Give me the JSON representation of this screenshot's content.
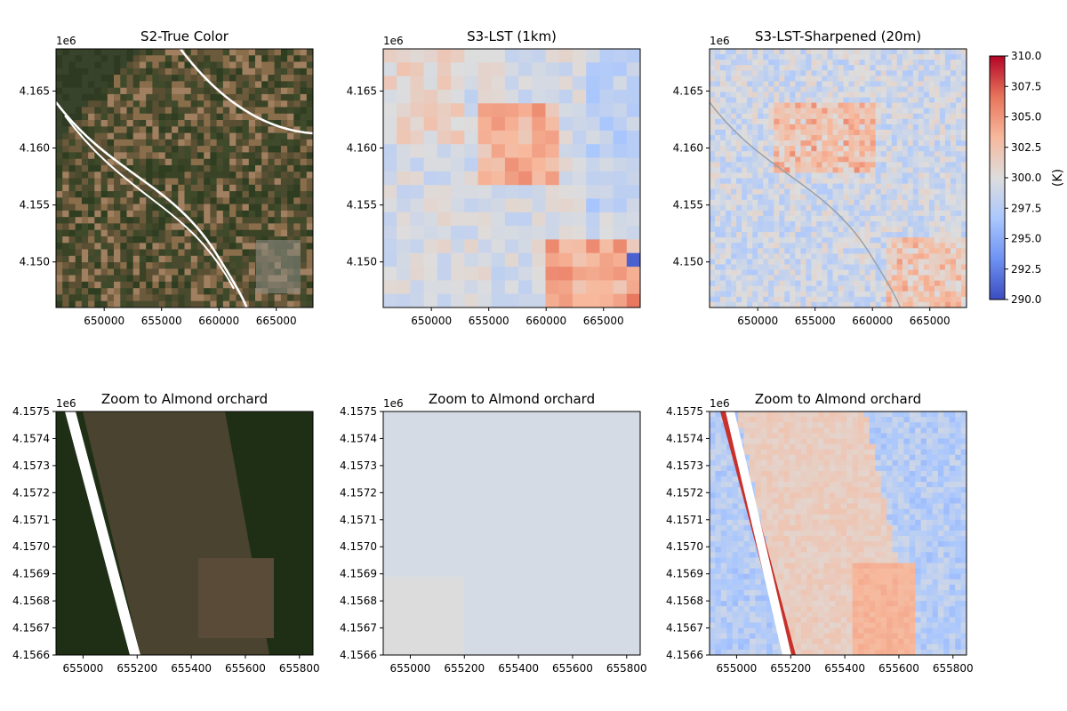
{
  "chart_data": [
    {
      "type": "heatmap",
      "title": "S2-True Color",
      "panel": "top-left",
      "xlim": [
        645800,
        668200
      ],
      "ylim": [
        4146000,
        4168700
      ],
      "x_ticks": [
        650000,
        655000,
        660000,
        665000
      ],
      "y_ticks": [
        4150000,
        4155000,
        4160000,
        4165000
      ],
      "x_tick_labels": [
        "650000",
        "655000",
        "660000",
        "665000"
      ],
      "y_tick_labels": [
        "4.150",
        "4.155",
        "4.160",
        "4.165"
      ],
      "y_offset_label": "1e6",
      "colormap": "true-color RGB"
    },
    {
      "type": "heatmap",
      "title": "S3-LST (1km)",
      "panel": "top-middle",
      "xlim": [
        645800,
        668200
      ],
      "ylim": [
        4146000,
        4168700
      ],
      "x_ticks": [
        650000,
        655000,
        660000,
        665000
      ],
      "y_ticks": [
        4150000,
        4155000,
        4160000,
        4165000
      ],
      "x_tick_labels": [
        "650000",
        "655000",
        "660000",
        "665000"
      ],
      "y_tick_labels": [
        "4.150",
        "4.155",
        "4.160",
        "4.165"
      ],
      "y_offset_label": "1e6",
      "colormap": "coolwarm",
      "vmin": 290,
      "vmax": 310
    },
    {
      "type": "heatmap",
      "title": "S3-LST-Sharpened (20m)",
      "panel": "top-right",
      "xlim": [
        645800,
        668200
      ],
      "ylim": [
        4146000,
        4168700
      ],
      "x_ticks": [
        650000,
        655000,
        660000,
        665000
      ],
      "y_ticks": [
        4150000,
        4155000,
        4160000,
        4165000
      ],
      "x_tick_labels": [
        "650000",
        "655000",
        "660000",
        "665000"
      ],
      "y_tick_labels": [
        "4.150",
        "4.155",
        "4.160",
        "4.165"
      ],
      "y_offset_label": "1e6",
      "colormap": "coolwarm",
      "vmin": 290,
      "vmax": 310
    },
    {
      "type": "heatmap",
      "title": "Zoom to Almond orchard",
      "panel": "bottom-left",
      "xlim": [
        654900,
        655850
      ],
      "ylim": [
        4156600,
        4157500
      ],
      "x_ticks": [
        655000,
        655200,
        655400,
        655600,
        655800
      ],
      "y_ticks": [
        4156600,
        4156700,
        4156800,
        4156900,
        4157000,
        4157100,
        4157200,
        4157300,
        4157400,
        4157500
      ],
      "x_tick_labels": [
        "655000",
        "655200",
        "655400",
        "655600",
        "655800"
      ],
      "y_tick_labels": [
        "4.1566",
        "4.1567",
        "4.1568",
        "4.1569",
        "4.1570",
        "4.1571",
        "4.1572",
        "4.1573",
        "4.1574",
        "4.1575"
      ],
      "y_offset_label": "1e6",
      "colormap": "true-color RGB"
    },
    {
      "type": "heatmap",
      "title": "Zoom to Almond orchard",
      "panel": "bottom-middle",
      "xlim": [
        654900,
        655850
      ],
      "ylim": [
        4156600,
        4157500
      ],
      "x_ticks": [
        655000,
        655200,
        655400,
        655600,
        655800
      ],
      "y_ticks": [
        4156600,
        4156700,
        4156800,
        4156900,
        4157000,
        4157100,
        4157200,
        4157300,
        4157400,
        4157500
      ],
      "x_tick_labels": [
        "655000",
        "655200",
        "655400",
        "655600",
        "655800"
      ],
      "y_tick_labels": [
        "4.1566",
        "4.1567",
        "4.1568",
        "4.1569",
        "4.1570",
        "4.1571",
        "4.1572",
        "4.1573",
        "4.1574",
        "4.1575"
      ],
      "y_offset_label": "1e6",
      "colormap": "coolwarm",
      "vmin": 290,
      "vmax": 310
    },
    {
      "type": "heatmap",
      "title": "Zoom to Almond orchard",
      "panel": "bottom-right",
      "xlim": [
        654900,
        655850
      ],
      "ylim": [
        4156600,
        4157500
      ],
      "x_ticks": [
        655000,
        655200,
        655400,
        655600,
        655800
      ],
      "y_ticks": [
        4156600,
        4156700,
        4156800,
        4156900,
        4157000,
        4157100,
        4157200,
        4157300,
        4157400,
        4157500
      ],
      "x_tick_labels": [
        "655000",
        "655200",
        "655400",
        "655600",
        "655800"
      ],
      "y_tick_labels": [
        "4.1566",
        "4.1567",
        "4.1568",
        "4.1569",
        "4.1570",
        "4.1571",
        "4.1572",
        "4.1573",
        "4.1574",
        "4.1575"
      ],
      "y_offset_label": "1e6",
      "colormap": "coolwarm",
      "vmin": 290,
      "vmax": 310
    }
  ],
  "colorbar": {
    "label": "(K)",
    "min": 290.0,
    "max": 310.0,
    "ticks": [
      290.0,
      292.5,
      295.0,
      297.5,
      300.0,
      302.5,
      305.0,
      307.5,
      310.0
    ],
    "tick_labels": [
      "290.0",
      "292.5",
      "295.0",
      "297.5",
      "300.0",
      "302.5",
      "305.0",
      "307.5",
      "310.0"
    ],
    "colors": [
      "#3b4cc0",
      "#6f92f3",
      "#aac7fd",
      "#dddddd",
      "#f7b89c",
      "#e7745b",
      "#b40426"
    ]
  }
}
